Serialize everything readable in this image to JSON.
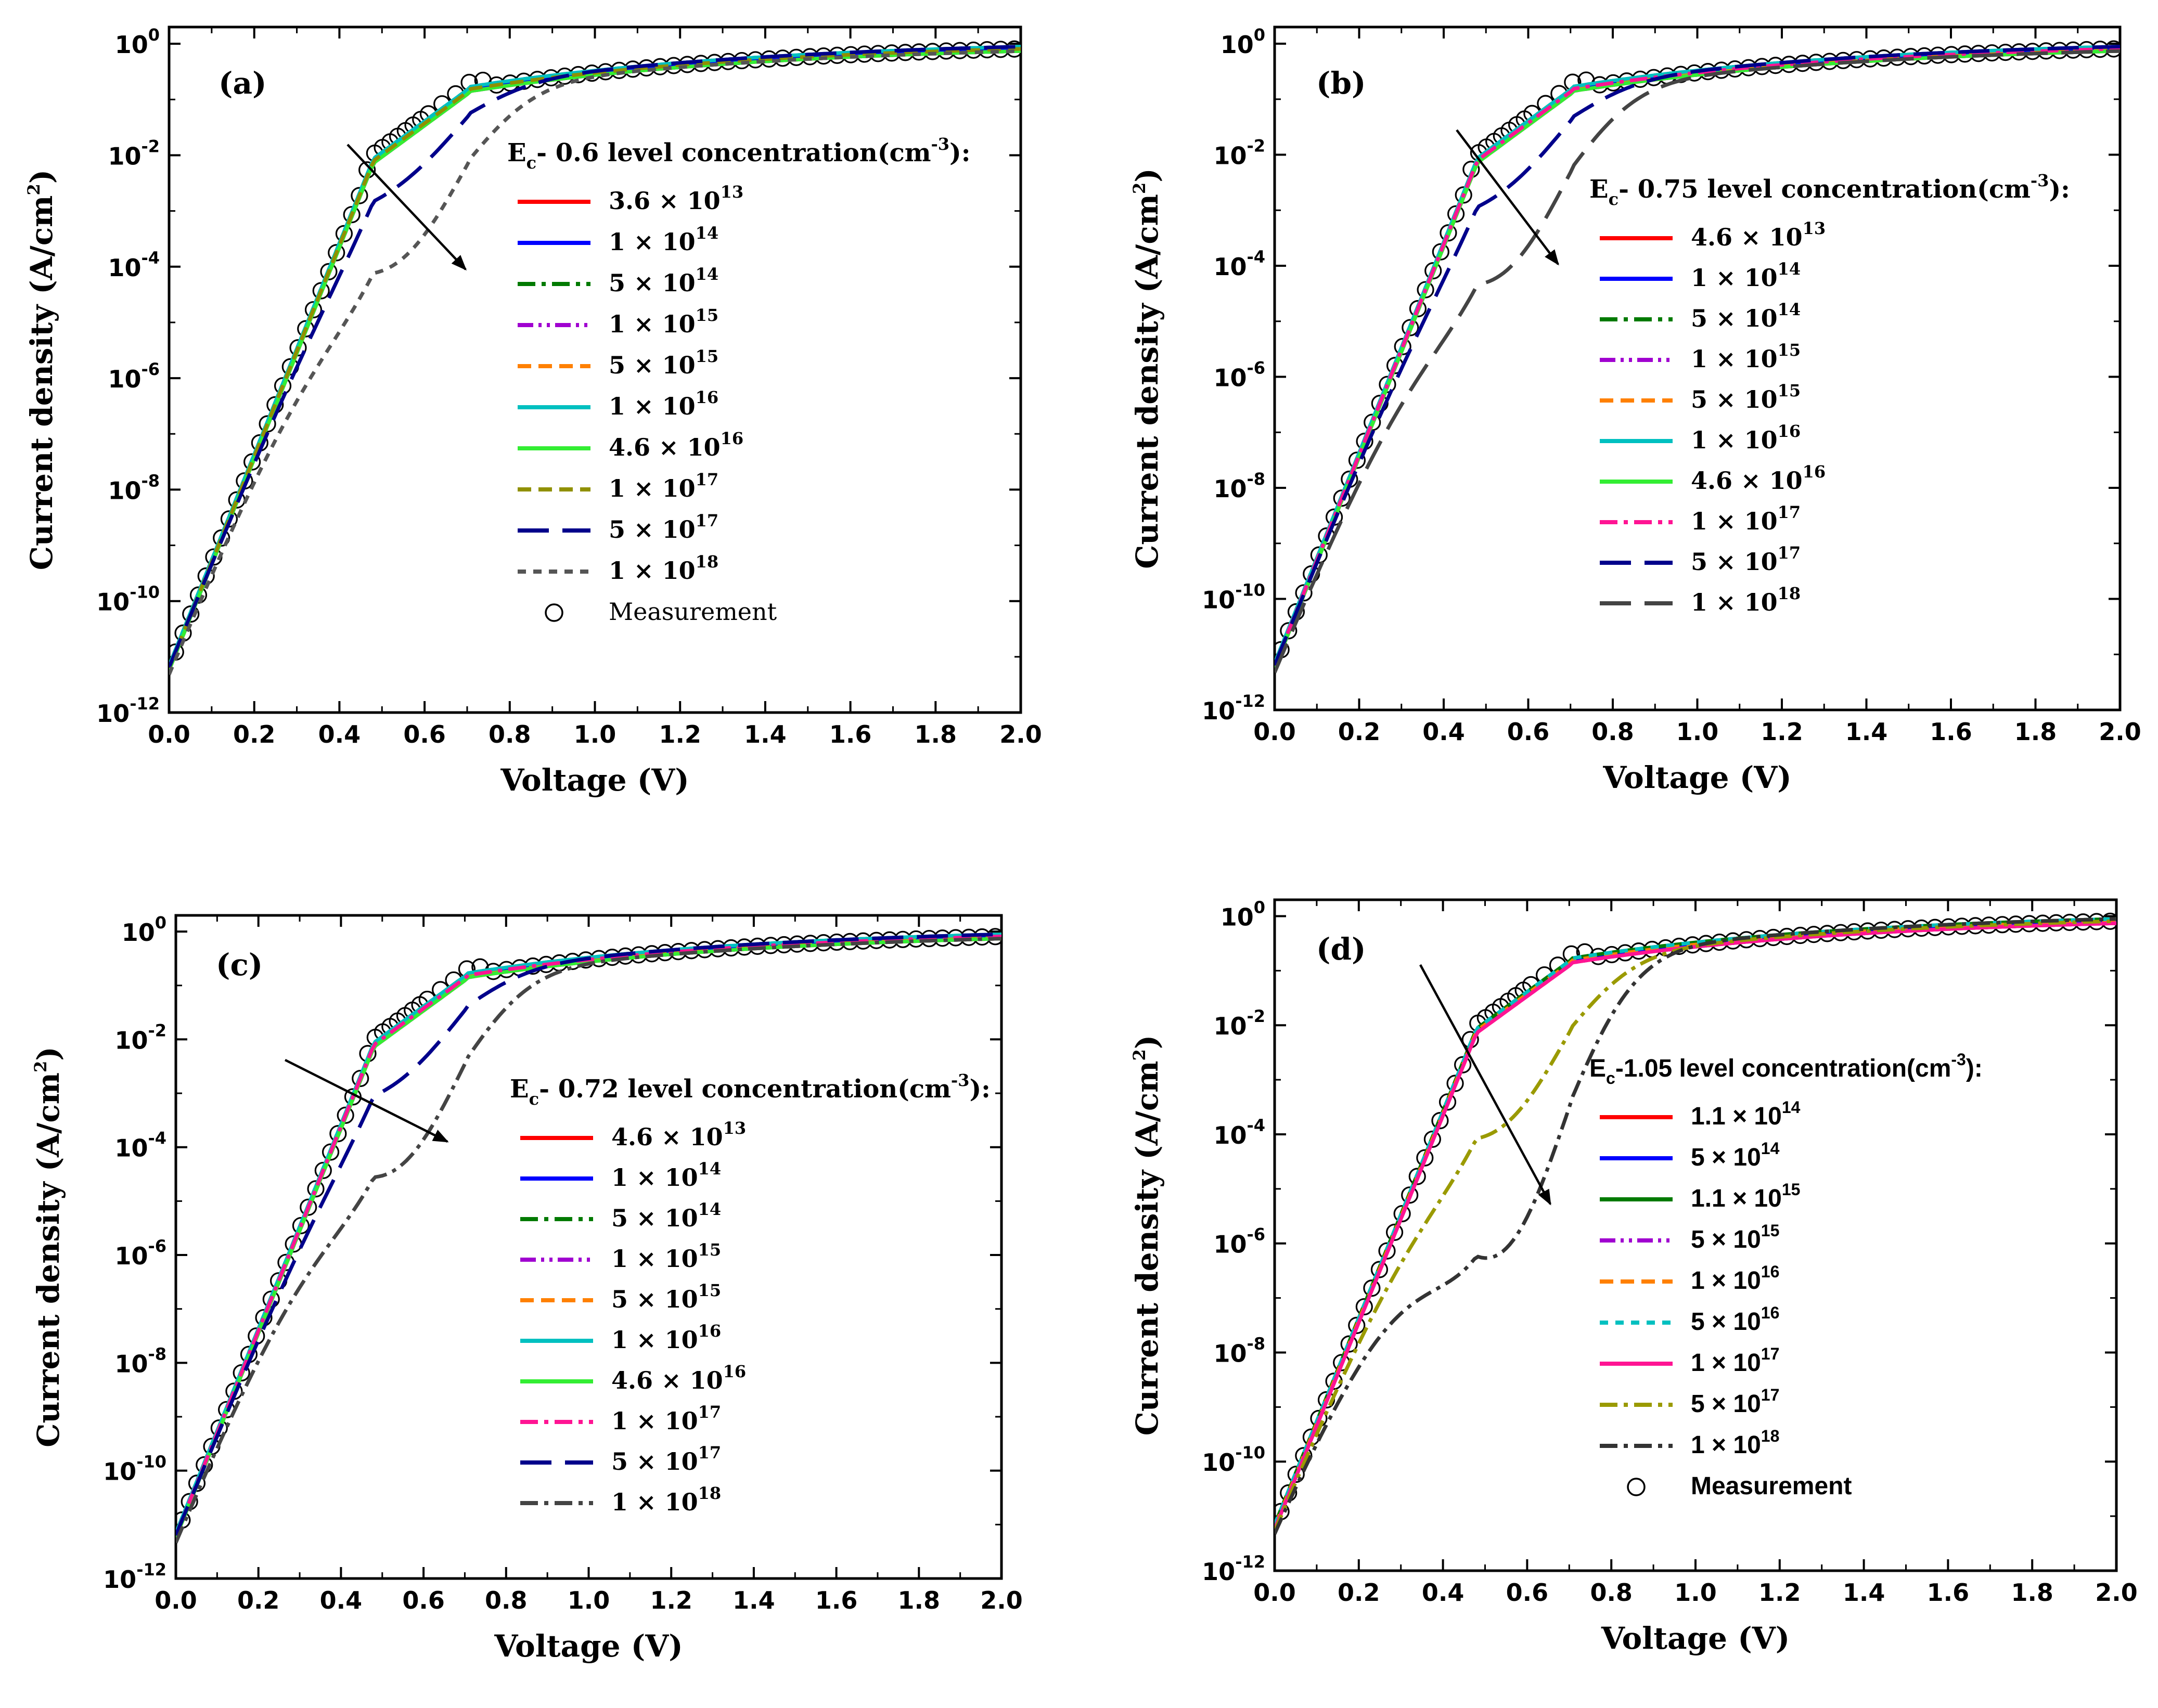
{
  "chart_data": [
    {
      "panel": "(a)",
      "type": "line",
      "title": "",
      "xlabel": "Voltage (V)",
      "ylabel": "Current density (A/cm²)",
      "xlim": [
        0,
        2.0
      ],
      "ylim_log10": [
        -12,
        0.3
      ],
      "x_ticks": [
        "0.0",
        "0.2",
        "0.4",
        "0.6",
        "0.8",
        "1.0",
        "1.2",
        "1.4",
        "1.6",
        "1.8",
        "2.0"
      ],
      "y_ticks": [
        {
          "base": "10",
          "exp": "0"
        },
        {
          "base": "10",
          "exp": "-2"
        },
        {
          "base": "10",
          "exp": "-4"
        },
        {
          "base": "10",
          "exp": "-6"
        },
        {
          "base": "10",
          "exp": "-8"
        },
        {
          "base": "10",
          "exp": "-10"
        },
        {
          "base": "10",
          "exp": "-12"
        }
      ],
      "legend_title": {
        "main": "E",
        "sub": "c",
        "rest": "- 0.6 level concentration(cm",
        "sup": "-3",
        "end": "):"
      },
      "legend_font": "serif",
      "series": [
        {
          "mantissa": "3.6 × 10",
          "exp": "13",
          "color": "#ff0000",
          "dash": "solid",
          "drop": 0
        },
        {
          "mantissa": "1 × 10",
          "exp": "14",
          "color": "#0000ff",
          "dash": "solid",
          "drop": 0
        },
        {
          "mantissa": "5 × 10",
          "exp": "14",
          "color": "#007a00",
          "dash": "dashdot",
          "drop": 0
        },
        {
          "mantissa": "1 × 10",
          "exp": "15",
          "color": "#a000d0",
          "dash": "dashdotdot",
          "drop": 0
        },
        {
          "mantissa": "5 × 10",
          "exp": "15",
          "color": "#ff8000",
          "dash": "dash",
          "drop": 0
        },
        {
          "mantissa": "1 × 10",
          "exp": "16",
          "color": "#00c0c0",
          "dash": "solid",
          "drop": 0
        },
        {
          "mantissa": "4.6 × 10",
          "exp": "16",
          "color": "#33ee33",
          "dash": "solid",
          "drop": 0
        },
        {
          "mantissa": "1 × 10",
          "exp": "17",
          "color": "#909000",
          "dash": "dash",
          "drop": 0
        },
        {
          "mantissa": "5 × 10",
          "exp": "17",
          "color": "#00008b",
          "dash": "longdash",
          "drop": 0.35
        },
        {
          "mantissa": "1 × 10",
          "exp": "18",
          "color": "#555555",
          "dash": "shortdash",
          "drop": 0.9
        }
      ],
      "measurement_label": "Measurement",
      "curve_model": "log10 J: -11.2 at 0 V, rising ~24 decades/V to -2.5 near 0.48 V, then saturating to ~0.1 at 2.0 V"
    },
    {
      "panel": "(b)",
      "type": "line",
      "title": "",
      "xlabel": "Voltage (V)",
      "ylabel": "Current density (A/cm²)",
      "xlim": [
        0,
        2.0
      ],
      "ylim_log10": [
        -12,
        0.3
      ],
      "x_ticks": [
        "0.0",
        "0.2",
        "0.4",
        "0.6",
        "0.8",
        "1.0",
        "1.2",
        "1.4",
        "1.6",
        "1.8",
        "2.0"
      ],
      "y_ticks": [
        {
          "base": "10",
          "exp": "0"
        },
        {
          "base": "10",
          "exp": "-2"
        },
        {
          "base": "10",
          "exp": "-4"
        },
        {
          "base": "10",
          "exp": "-6"
        },
        {
          "base": "10",
          "exp": "-8"
        },
        {
          "base": "10",
          "exp": "-10"
        },
        {
          "base": "10",
          "exp": "-12"
        }
      ],
      "legend_title": {
        "main": "E",
        "sub": "c",
        "rest": "- 0.75 level concentration(cm",
        "sup": "-3",
        "end": "):"
      },
      "legend_font": "serif",
      "series": [
        {
          "mantissa": "4.6 × 10",
          "exp": "13",
          "color": "#ff0000",
          "dash": "solid",
          "drop": 0
        },
        {
          "mantissa": "1 × 10",
          "exp": "14",
          "color": "#0000ff",
          "dash": "solid",
          "drop": 0
        },
        {
          "mantissa": "5 × 10",
          "exp": "14",
          "color": "#007a00",
          "dash": "dashdot",
          "drop": 0
        },
        {
          "mantissa": "1 × 10",
          "exp": "15",
          "color": "#a000d0",
          "dash": "dashdotdot",
          "drop": 0
        },
        {
          "mantissa": "5 × 10",
          "exp": "15",
          "color": "#ff8000",
          "dash": "dash",
          "drop": 0
        },
        {
          "mantissa": "1 × 10",
          "exp": "16",
          "color": "#00c0c0",
          "dash": "solid",
          "drop": 0
        },
        {
          "mantissa": "4.6 × 10",
          "exp": "16",
          "color": "#33ee33",
          "dash": "solid",
          "drop": 0
        },
        {
          "mantissa": "1 × 10",
          "exp": "17",
          "color": "#ff1493",
          "dash": "dashdot",
          "drop": 0
        },
        {
          "mantissa": "5 × 10",
          "exp": "17",
          "color": "#00008b",
          "dash": "longdash",
          "drop": 0.4
        },
        {
          "mantissa": "1 × 10",
          "exp": "18",
          "color": "#444444",
          "dash": "longdash",
          "drop": 1.0
        }
      ],
      "measurement_label": "",
      "curve_model": "log10 J: -11.2 at 0 V, rising ~24 decades/V to -2.5 near 0.48 V, then saturating to ~0.1 at 2.0 V"
    },
    {
      "panel": "(c)",
      "type": "line",
      "title": "",
      "xlabel": "Voltage (V)",
      "ylabel": "Current density (A/cm²)",
      "xlim": [
        0,
        2.0
      ],
      "ylim_log10": [
        -12,
        0.3
      ],
      "x_ticks": [
        "0.0",
        "0.2",
        "0.4",
        "0.6",
        "0.8",
        "1.0",
        "1.2",
        "1.4",
        "1.6",
        "1.8",
        "2.0"
      ],
      "y_ticks": [
        {
          "base": "10",
          "exp": "0"
        },
        {
          "base": "10",
          "exp": "-2"
        },
        {
          "base": "10",
          "exp": "-4"
        },
        {
          "base": "10",
          "exp": "-6"
        },
        {
          "base": "10",
          "exp": "-8"
        },
        {
          "base": "10",
          "exp": "-10"
        },
        {
          "base": "10",
          "exp": "-12"
        }
      ],
      "legend_title": {
        "main": "E",
        "sub": "c",
        "rest": "- 0.72 level concentration(cm",
        "sup": "-3",
        "end": "):"
      },
      "legend_font": "serif",
      "series": [
        {
          "mantissa": "4.6 × 10",
          "exp": "13",
          "color": "#ff0000",
          "dash": "solid",
          "drop": 0
        },
        {
          "mantissa": "1 × 10",
          "exp": "14",
          "color": "#0000ff",
          "dash": "solid",
          "drop": 0
        },
        {
          "mantissa": "5 × 10",
          "exp": "14",
          "color": "#007a00",
          "dash": "dashdot",
          "drop": 0
        },
        {
          "mantissa": "1 × 10",
          "exp": "15",
          "color": "#a000d0",
          "dash": "dashdotdot",
          "drop": 0
        },
        {
          "mantissa": "5 × 10",
          "exp": "15",
          "color": "#ff8000",
          "dash": "dash",
          "drop": 0
        },
        {
          "mantissa": "1 × 10",
          "exp": "16",
          "color": "#00c0c0",
          "dash": "solid",
          "drop": 0
        },
        {
          "mantissa": "4.6 × 10",
          "exp": "16",
          "color": "#33ee33",
          "dash": "solid",
          "drop": 0
        },
        {
          "mantissa": "1 × 10",
          "exp": "17",
          "color": "#ff1493",
          "dash": "dashdot",
          "drop": 0
        },
        {
          "mantissa": "5 × 10",
          "exp": "17",
          "color": "#00008b",
          "dash": "longdash",
          "drop": 0.45
        },
        {
          "mantissa": "1 × 10",
          "exp": "18",
          "color": "#444444",
          "dash": "dashdot",
          "drop": 1.1
        }
      ],
      "measurement_label": "",
      "curve_model": "log10 J: -11.2 at 0 V, rising ~24 decades/V to -2.5 near 0.48 V, then saturating to ~0.1 at 2.0 V"
    },
    {
      "panel": "(d)",
      "type": "line",
      "title": "",
      "xlabel": "Voltage (V)",
      "ylabel": "Current density (A/cm²)",
      "xlim": [
        0,
        2.0
      ],
      "ylim_log10": [
        -12,
        0.3
      ],
      "x_ticks": [
        "0.0",
        "0.2",
        "0.4",
        "0.6",
        "0.8",
        "1.0",
        "1.2",
        "1.4",
        "1.6",
        "1.8",
        "2.0"
      ],
      "y_ticks": [
        {
          "base": "10",
          "exp": "0"
        },
        {
          "base": "10",
          "exp": "-2"
        },
        {
          "base": "10",
          "exp": "-4"
        },
        {
          "base": "10",
          "exp": "-6"
        },
        {
          "base": "10",
          "exp": "-8"
        },
        {
          "base": "10",
          "exp": "-10"
        },
        {
          "base": "10",
          "exp": "-12"
        }
      ],
      "legend_title": {
        "main": "E",
        "sub": "c",
        "rest": "-1.05 level concentration(cm",
        "sup": "-3",
        "end": "):"
      },
      "legend_font": "sans",
      "series": [
        {
          "mantissa": "1.1 × 10",
          "exp": "14",
          "color": "#ff0000",
          "dash": "solid",
          "drop": 0
        },
        {
          "mantissa": "5 × 10",
          "exp": "14",
          "color": "#0000ff",
          "dash": "solid",
          "drop": 0
        },
        {
          "mantissa": "1.1 × 10",
          "exp": "15",
          "color": "#007a00",
          "dash": "solid",
          "drop": 0
        },
        {
          "mantissa": "5 × 10",
          "exp": "15",
          "color": "#a000d0",
          "dash": "dashdotdot",
          "drop": 0
        },
        {
          "mantissa": "1 × 10",
          "exp": "16",
          "color": "#ff8000",
          "dash": "dash",
          "drop": 0
        },
        {
          "mantissa": "5 × 10",
          "exp": "16",
          "color": "#00c0c0",
          "dash": "shortdash",
          "drop": 0
        },
        {
          "mantissa": "1 × 10",
          "exp": "17",
          "color": "#ff1493",
          "dash": "solid",
          "drop": 0
        },
        {
          "mantissa": "5 × 10",
          "exp": "17",
          "color": "#9a9a00",
          "dash": "dashdot",
          "drop": 0.9
        },
        {
          "mantissa": "1 × 10",
          "exp": "18",
          "color": "#333333",
          "dash": "dashdot",
          "drop": 1.9
        }
      ],
      "measurement_label": "Measurement",
      "curve_model": "log10 J: -11.2 at 0 V, rising ~24 decades/V to -2.5 near 0.48 V, then saturating to ~0.1 at 2.0 V"
    }
  ]
}
